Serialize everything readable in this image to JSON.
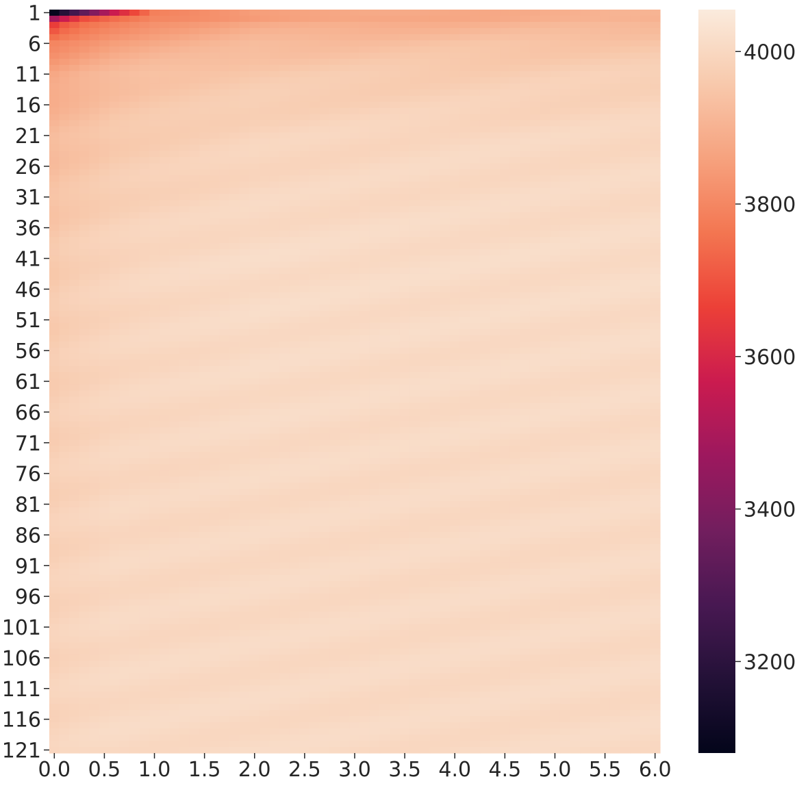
{
  "chart_data": {
    "type": "heatmap",
    "title": "",
    "xlabel": "",
    "ylabel": "",
    "x_tick_labels": [
      "0.0",
      "0.5",
      "1.0",
      "1.5",
      "2.0",
      "2.5",
      "3.0",
      "3.5",
      "4.0",
      "4.5",
      "5.0",
      "5.5",
      "6.0"
    ],
    "y_tick_labels": [
      "1",
      "6",
      "11",
      "16",
      "21",
      "26",
      "31",
      "36",
      "41",
      "46",
      "51",
      "56",
      "61",
      "66",
      "71",
      "76",
      "81",
      "86",
      "91",
      "96",
      "101",
      "106",
      "111",
      "116",
      "121"
    ],
    "xlim": [
      0.0,
      6.0
    ],
    "ylim": [
      1,
      121
    ],
    "grid": false,
    "colormap": "rocket",
    "colorbar": {
      "range": [
        3080,
        4055
      ],
      "ticks": [
        3200,
        3400,
        3600,
        3800,
        4000
      ],
      "tick_labels": [
        "3200",
        "3400",
        "3600",
        "3800",
        "4000"
      ]
    },
    "approx_values": {
      "description_rows": [
        1,
        2,
        3,
        6,
        11,
        21,
        41,
        81,
        121
      ],
      "description_cols": [
        0.0,
        0.1,
        0.3,
        0.6,
        1.0,
        2.0,
        4.0,
        6.0
      ],
      "values": [
        [
          3090,
          3180,
          3330,
          3560,
          3780,
          3860,
          3880,
          3900
        ],
        [
          3480,
          3560,
          3680,
          3740,
          3800,
          3850,
          3880,
          3900
        ],
        [
          3650,
          3700,
          3750,
          3790,
          3830,
          3880,
          3900,
          3920
        ],
        [
          3800,
          3810,
          3830,
          3860,
          3880,
          3920,
          3940,
          3950
        ],
        [
          3870,
          3880,
          3900,
          3920,
          3940,
          3960,
          3970,
          3980
        ],
        [
          3920,
          3930,
          3940,
          3960,
          3970,
          3990,
          4000,
          4000
        ],
        [
          3960,
          3970,
          3980,
          3990,
          4000,
          4010,
          4010,
          4010
        ],
        [
          3980,
          3985,
          3990,
          4000,
          4000,
          4005,
          4005,
          4005
        ],
        [
          3990,
          3995,
          4000,
          4005,
          4005,
          4005,
          4005,
          4005
        ]
      ]
    }
  }
}
